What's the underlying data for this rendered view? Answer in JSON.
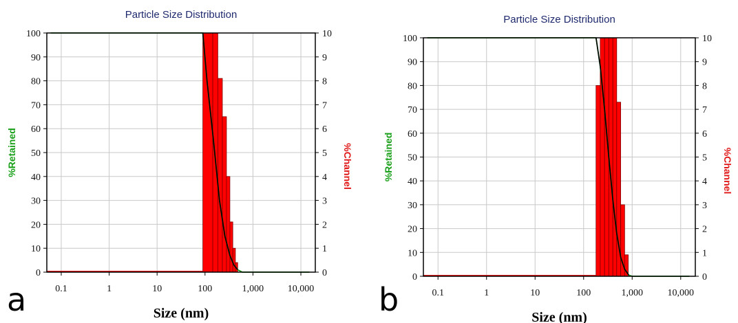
{
  "chart_data": [
    {
      "type": "bar",
      "panel_label": "a",
      "title": "Particle Size Distribution",
      "xlabel": "Size (nm)",
      "ylabel_left": "%Retained",
      "ylabel_right": "%Channel",
      "x_scale": "log",
      "xlim": [
        0.05,
        20000
      ],
      "x_ticks": [
        0.1,
        1,
        10,
        100,
        1000,
        10000
      ],
      "x_tick_labels": [
        "0.1",
        "1",
        "10",
        "100",
        "1,000",
        "10,000"
      ],
      "ylim_left": [
        0,
        100
      ],
      "y_ticks_left": [
        "0",
        "10",
        "20",
        "30",
        "40",
        "50",
        "60",
        "70",
        "80",
        "90",
        "100"
      ],
      "ylim_right": [
        0,
        10
      ],
      "y_ticks_right": [
        "0",
        "1",
        "2",
        "3",
        "4",
        "5",
        "6",
        "7",
        "8",
        "9",
        "10"
      ],
      "grid": true,
      "channel_bars": {
        "color": "#ff0000",
        "bins": [
          {
            "x0": 90,
            "x1": 145,
            "value": 10
          },
          {
            "x0": 145,
            "x1": 185,
            "value": 10
          },
          {
            "x0": 185,
            "x1": 230,
            "value": 8.1
          },
          {
            "x0": 230,
            "x1": 280,
            "value": 6.5
          },
          {
            "x0": 280,
            "x1": 330,
            "value": 4.0
          },
          {
            "x0": 330,
            "x1": 380,
            "value": 2.1
          },
          {
            "x0": 380,
            "x1": 430,
            "value": 1.0
          },
          {
            "x0": 430,
            "x1": 480,
            "value": 0.4
          }
        ]
      },
      "retained_curve": {
        "color": "#1a8c1a",
        "points": [
          [
            0.06,
            100
          ],
          [
            90,
            100
          ],
          [
            110,
            80
          ],
          [
            150,
            55
          ],
          [
            200,
            30
          ],
          [
            260,
            15
          ],
          [
            330,
            7
          ],
          [
            400,
            3
          ],
          [
            480,
            1
          ],
          [
            600,
            0
          ],
          [
            15000,
            0
          ]
        ]
      },
      "fit_curve": {
        "color": "#000000",
        "points": [
          [
            90,
            100
          ],
          [
            110,
            80
          ],
          [
            150,
            55
          ],
          [
            200,
            30
          ],
          [
            260,
            15
          ],
          [
            330,
            7
          ],
          [
            400,
            3
          ],
          [
            480,
            1
          ]
        ]
      }
    },
    {
      "type": "bar",
      "panel_label": "b",
      "title": "Particle Size Distribution",
      "xlabel": "Size (nm)",
      "ylabel_left": "%Retained",
      "ylabel_right": "%Channel",
      "x_scale": "log",
      "xlim": [
        0.05,
        20000
      ],
      "x_ticks": [
        0.1,
        1,
        10,
        100,
        1000,
        10000
      ],
      "x_tick_labels": [
        "0.1",
        "1",
        "10",
        "100",
        "1,000",
        "10,000"
      ],
      "ylim_left": [
        0,
        100
      ],
      "y_ticks_left": [
        "0",
        "10",
        "20",
        "30",
        "40",
        "50",
        "60",
        "70",
        "80",
        "90",
        "100"
      ],
      "ylim_right": [
        0,
        10
      ],
      "y_ticks_right": [
        "0",
        "1",
        "2",
        "3",
        "4",
        "5",
        "6",
        "7",
        "8",
        "9",
        "10"
      ],
      "grid": true,
      "channel_bars": {
        "color": "#ff0000",
        "bins": [
          {
            "x0": 180,
            "x1": 220,
            "value": 8.0
          },
          {
            "x0": 220,
            "x1": 270,
            "value": 10
          },
          {
            "x0": 270,
            "x1": 330,
            "value": 10
          },
          {
            "x0": 330,
            "x1": 400,
            "value": 10
          },
          {
            "x0": 400,
            "x1": 480,
            "value": 10
          },
          {
            "x0": 480,
            "x1": 580,
            "value": 7.3
          },
          {
            "x0": 580,
            "x1": 700,
            "value": 3.0
          },
          {
            "x0": 700,
            "x1": 830,
            "value": 0.9
          }
        ]
      },
      "retained_curve": {
        "color": "#1a8c1a",
        "points": [
          [
            0.06,
            100
          ],
          [
            180,
            100
          ],
          [
            220,
            88
          ],
          [
            270,
            70
          ],
          [
            330,
            50
          ],
          [
            400,
            32
          ],
          [
            480,
            18
          ],
          [
            580,
            8
          ],
          [
            700,
            3
          ],
          [
            850,
            0.5
          ],
          [
            1000,
            0
          ],
          [
            15000,
            0
          ]
        ]
      },
      "fit_curve": {
        "color": "#000000",
        "points": [
          [
            180,
            100
          ],
          [
            220,
            88
          ],
          [
            270,
            70
          ],
          [
            330,
            50
          ],
          [
            400,
            32
          ],
          [
            480,
            18
          ],
          [
            580,
            8
          ],
          [
            700,
            3
          ],
          [
            850,
            0.5
          ]
        ]
      }
    }
  ]
}
